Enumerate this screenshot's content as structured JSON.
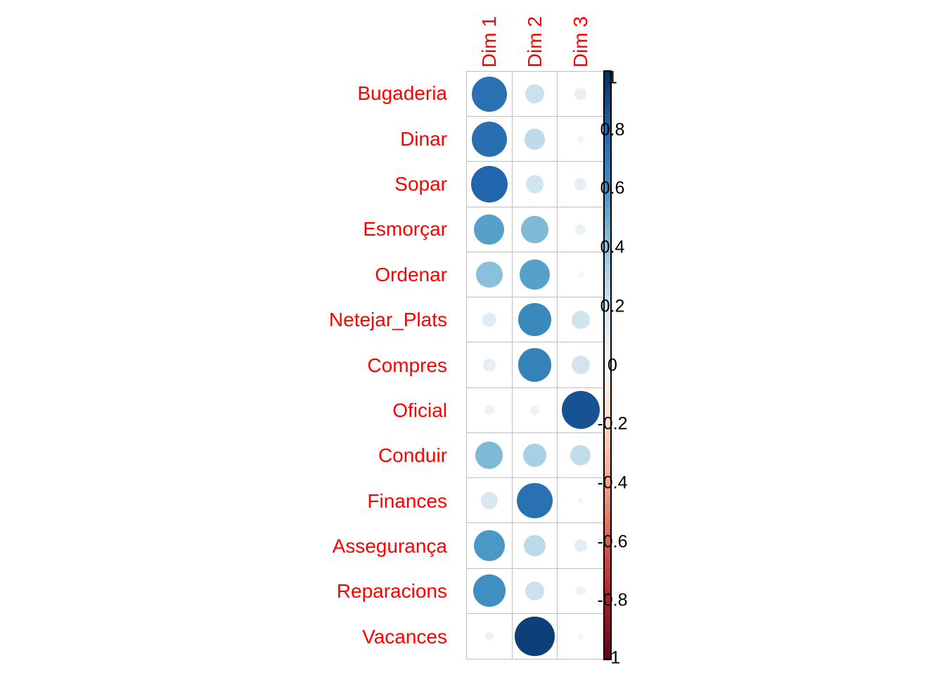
{
  "chart_data": {
    "type": "heatmap",
    "subtype": "correlation-bubble-matrix",
    "title": "",
    "columns": [
      "Dim 1",
      "Dim 2",
      "Dim 3"
    ],
    "rows": [
      "Bugaderia",
      "Dinar",
      "Sopar",
      "Esmorçar",
      "Ordenar",
      "Netejar_Plats",
      "Compres",
      "Oficial",
      "Conduir",
      "Finances",
      "Assegurança",
      "Reparacions",
      "Vacances"
    ],
    "values": [
      [
        0.75,
        0.22,
        0.08
      ],
      [
        0.76,
        0.26,
        0.03
      ],
      [
        0.8,
        0.2,
        0.09
      ],
      [
        0.55,
        0.45,
        0.07
      ],
      [
        0.42,
        0.55,
        0.02
      ],
      [
        0.12,
        0.65,
        0.2
      ],
      [
        0.09,
        0.68,
        0.2
      ],
      [
        0.06,
        0.05,
        0.87
      ],
      [
        0.45,
        0.33,
        0.25
      ],
      [
        0.17,
        0.75,
        0.02
      ],
      [
        0.58,
        0.27,
        0.1
      ],
      [
        0.62,
        0.22,
        0.06
      ],
      [
        0.04,
        0.94,
        0.02
      ]
    ],
    "value_range": [
      -1,
      1
    ],
    "grid": true,
    "legend_position": "right",
    "colorbar": {
      "ticks": [
        "1",
        "0.8",
        "0.6",
        "0.4",
        "0.2",
        "0",
        "-0.2",
        "-0.4",
        "-0.6",
        "-0.8",
        "-1"
      ],
      "tick_values": [
        1,
        0.8,
        0.6,
        0.4,
        0.2,
        0,
        -0.2,
        -0.4,
        -0.6,
        -0.8,
        -1
      ],
      "palette_top_to_bottom": [
        "#053061",
        "#2166AC",
        "#4393C3",
        "#92C5DE",
        "#D1E5F0",
        "#F7F7F7",
        "#FDDBC7",
        "#F4A582",
        "#D6604D",
        "#B2182B",
        "#67001F"
      ]
    },
    "label_color": "#FF0000",
    "tick_label_color": "#000000",
    "grid_color": "#BEBEBE",
    "background": "#FFFFFF"
  }
}
